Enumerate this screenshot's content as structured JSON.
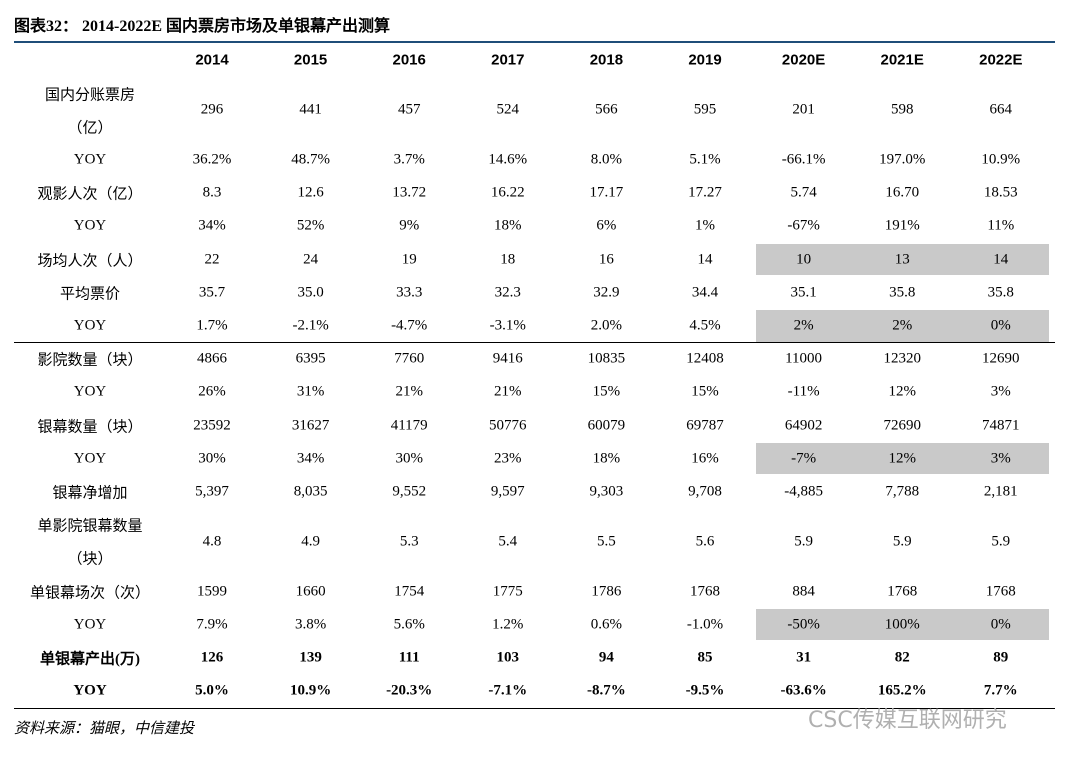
{
  "header": {
    "title": "图表32： 2014-2022E 国内票房市场及单银幕产出测算"
  },
  "table": {
    "columns": [
      "2014",
      "2015",
      "2016",
      "2017",
      "2018",
      "2019",
      "2020E",
      "2021E",
      "2022E"
    ],
    "rows": [
      {
        "label": [
          "国内分账票房",
          "（亿）"
        ],
        "values": [
          "296",
          "441",
          "457",
          "524",
          "566",
          "595",
          "201",
          "598",
          "664"
        ]
      },
      {
        "label": [
          "YOY"
        ],
        "values": [
          "36.2%",
          "48.7%",
          "3.7%",
          "14.6%",
          "8.0%",
          "5.1%",
          "-66.1%",
          "197.0%",
          "10.9%"
        ]
      },
      {
        "label": [
          "观影人次（亿）"
        ],
        "values": [
          "8.3",
          "12.6",
          "13.72",
          "16.22",
          "17.17",
          "17.27",
          "5.74",
          "16.70",
          "18.53"
        ]
      },
      {
        "label": [
          "YOY"
        ],
        "values": [
          "34%",
          "52%",
          "9%",
          "18%",
          "6%",
          "1%",
          "-67%",
          "191%",
          "11%"
        ]
      },
      {
        "label": [
          "场均人次（人）"
        ],
        "values": [
          "22",
          "24",
          "19",
          "18",
          "16",
          "14",
          "10",
          "13",
          "14"
        ],
        "shaded": true
      },
      {
        "label": [
          "平均票价"
        ],
        "values": [
          "35.7",
          "35.0",
          "33.3",
          "32.3",
          "32.9",
          "34.4",
          "35.1",
          "35.8",
          "35.8"
        ]
      },
      {
        "label": [
          "YOY"
        ],
        "values": [
          "1.7%",
          "-2.1%",
          "-4.7%",
          "-3.1%",
          "2.0%",
          "4.5%",
          "2%",
          "2%",
          "0%"
        ],
        "shaded": true
      },
      {
        "label": [
          "影院数量（块）"
        ],
        "values": [
          "4866",
          "6395",
          "7760",
          "9416",
          "10835",
          "12408",
          "11000",
          "12320",
          "12690"
        ]
      },
      {
        "label": [
          "YOY"
        ],
        "values": [
          "26%",
          "31%",
          "21%",
          "21%",
          "15%",
          "15%",
          "-11%",
          "12%",
          "3%"
        ]
      },
      {
        "label": [
          "银幕数量（块）"
        ],
        "values": [
          "23592",
          "31627",
          "41179",
          "50776",
          "60079",
          "69787",
          "64902",
          "72690",
          "74871"
        ]
      },
      {
        "label": [
          "YOY"
        ],
        "values": [
          "30%",
          "34%",
          "30%",
          "23%",
          "18%",
          "16%",
          "-7%",
          "12%",
          "3%"
        ],
        "shaded": true
      },
      {
        "label": [
          "银幕净增加"
        ],
        "values": [
          "5,397",
          "8,035",
          "9,552",
          "9,597",
          "9,303",
          "9,708",
          "-4,885",
          "7,788",
          "2,181"
        ]
      },
      {
        "label": [
          "单影院银幕数量",
          "（块）"
        ],
        "values": [
          "4.8",
          "4.9",
          "5.3",
          "5.4",
          "5.5",
          "5.6",
          "5.9",
          "5.9",
          "5.9"
        ]
      },
      {
        "label": [
          "单银幕场次（次）"
        ],
        "values": [
          "1599",
          "1660",
          "1754",
          "1775",
          "1786",
          "1768",
          "884",
          "1768",
          "1768"
        ]
      },
      {
        "label": [
          "YOY"
        ],
        "values": [
          "7.9%",
          "3.8%",
          "5.6%",
          "1.2%",
          "0.6%",
          "-1.0%",
          "-50%",
          "100%",
          "0%"
        ],
        "shaded": true
      },
      {
        "label": [
          "单银幕产出(万)"
        ],
        "values": [
          "126",
          "139",
          "111",
          "103",
          "94",
          "85",
          "31",
          "82",
          "89"
        ],
        "bold": true
      },
      {
        "label": [
          "YOY"
        ],
        "values": [
          "5.0%",
          "10.9%",
          "-20.3%",
          "-7.1%",
          "-8.7%",
          "-9.5%",
          "-63.6%",
          "165.2%",
          "7.7%"
        ],
        "bold": true
      }
    ]
  },
  "footer": {
    "source": "资料来源：猫眼，中信建投",
    "watermark": "CSC传媒互联网研究"
  }
}
